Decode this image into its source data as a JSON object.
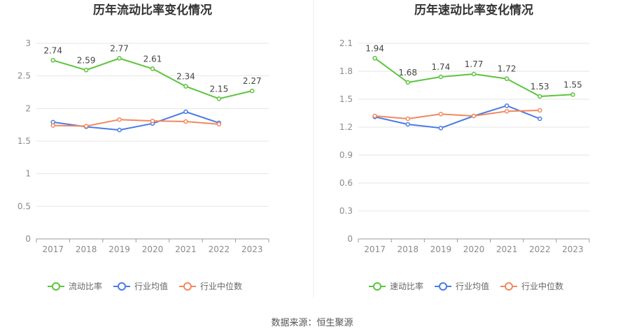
{
  "footer": {
    "source": "数据来源：恒生聚源"
  },
  "legend_labels": [
    "流动比率",
    "速动比率",
    "行业均值",
    "行业中位数"
  ],
  "colors": {
    "company": "#5cc43d",
    "avg": "#4a7be6",
    "median": "#f2885e"
  },
  "chart_data": [
    {
      "type": "line",
      "title": "历年流动比率变化情况",
      "categories": [
        "2017",
        "2018",
        "2019",
        "2020",
        "2021",
        "2022",
        "2023"
      ],
      "ylim": [
        0,
        3
      ],
      "yticks": [
        0,
        0.5,
        1,
        1.5,
        2,
        2.5,
        3
      ],
      "ytick_labels": [
        "0",
        "0.5",
        "1",
        "1.5",
        "2",
        "2.5",
        "3"
      ],
      "series": [
        {
          "name": "流动比率",
          "key": "company",
          "values": [
            2.74,
            2.59,
            2.77,
            2.61,
            2.34,
            2.15,
            2.27
          ],
          "labels": [
            "2.74",
            "2.59",
            "2.77",
            "2.61",
            "2.34",
            "2.15",
            "2.27"
          ]
        },
        {
          "name": "行业均值",
          "key": "avg",
          "values": [
            1.79,
            1.72,
            1.67,
            1.77,
            1.95,
            1.78,
            null
          ]
        },
        {
          "name": "行业中位数",
          "key": "median",
          "values": [
            1.74,
            1.73,
            1.83,
            1.81,
            1.8,
            1.76,
            null
          ]
        }
      ]
    },
    {
      "type": "line",
      "title": "历年速动比率变化情况",
      "categories": [
        "2017",
        "2018",
        "2019",
        "2020",
        "2021",
        "2022",
        "2023"
      ],
      "ylim": [
        0,
        2.1
      ],
      "yticks": [
        0,
        0.3,
        0.6,
        0.9,
        1.2,
        1.5,
        1.8,
        2.1
      ],
      "ytick_labels": [
        "0",
        "0.3",
        "0.6",
        "0.9",
        "1.2",
        "1.5",
        "1.8",
        "2.1"
      ],
      "series": [
        {
          "name": "速动比率",
          "key": "company",
          "values": [
            1.94,
            1.68,
            1.74,
            1.77,
            1.72,
            1.53,
            1.55
          ],
          "labels": [
            "1.94",
            "1.68",
            "1.74",
            "1.77",
            "1.72",
            "1.53",
            "1.55"
          ]
        },
        {
          "name": "行业均值",
          "key": "avg",
          "values": [
            1.31,
            1.23,
            1.19,
            1.32,
            1.43,
            1.29,
            null
          ]
        },
        {
          "name": "行业中位数",
          "key": "median",
          "values": [
            1.32,
            1.29,
            1.34,
            1.32,
            1.37,
            1.38,
            null
          ]
        }
      ]
    }
  ]
}
